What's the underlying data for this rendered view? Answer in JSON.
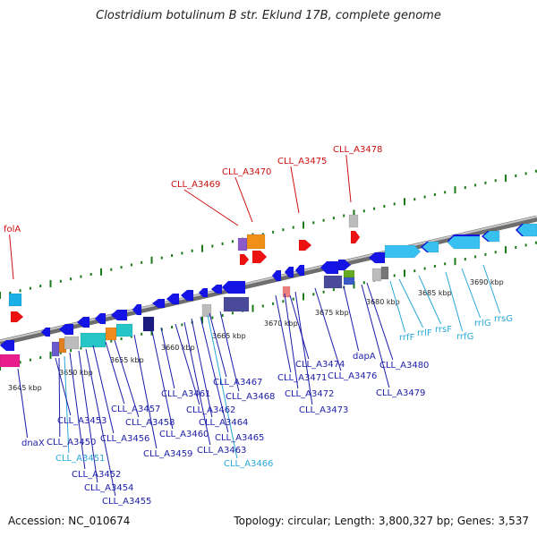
{
  "title": "Clostridium botulinum B str. Eklund 17B, complete genome",
  "accession": "Accession: NC_010674",
  "summary": "Topology: circular; Length: 3,800,327 bp; Genes: 3,537",
  "colors": {
    "backbone": "#8a8a8a",
    "tick": "#1a7a1a",
    "gene_label": "#1c1ca8",
    "rna_label": "#2aa8d8",
    "special_label": "#cc1111"
  },
  "scale_labels": [
    "3645 kbp",
    "3650 kbp",
    "3655 kbp",
    "3660 kbp",
    "3665 kbp",
    "3670 kbp",
    "3675 kbp",
    "3680 kbp",
    "3685 kbp",
    "3690 kbp"
  ],
  "labels": {
    "folA": "folA",
    "CLL_A3469": "CLL_A3469",
    "CLL_A3470": "CLL_A3470",
    "CLL_A3475": "CLL_A3475",
    "CLL_A3478": "CLL_A3478",
    "dnaX": "dnaX",
    "CLL_A3450": "CLL_A3450",
    "CLL_A3451": "CLL_A3451",
    "CLL_A3452": "CLL_A3452",
    "CLL_A3453": "CLL_A3453",
    "CLL_A3454": "CLL_A3454",
    "CLL_A3455": "CLL_A3455",
    "CLL_A3456": "CLL_A3456",
    "CLL_A3457": "CLL_A3457",
    "CLL_A3458": "CLL_A3458",
    "CLL_A3459": "CLL_A3459",
    "CLL_A3460": "CLL_A3460",
    "CLL_A3461": "CLL_A3461",
    "CLL_A3462": "CLL_A3462",
    "CLL_A3463": "CLL_A3463",
    "CLL_A3464": "CLL_A3464",
    "CLL_A3465": "CLL_A3465",
    "CLL_A3466": "CLL_A3466",
    "CLL_A3467": "CLL_A3467",
    "CLL_A3468": "CLL_A3468",
    "CLL_A3471": "CLL_A3471",
    "CLL_A3472": "CLL_A3472",
    "CLL_A3473": "CLL_A3473",
    "CLL_A3474": "CLL_A3474",
    "CLL_A3476": "CLL_A3476",
    "CLL_A3479": "CLL_A3479",
    "CLL_A3480": "CLL_A3480",
    "dapA": "dapA",
    "rrfF": "rrfF",
    "rrlF": "rrlF",
    "rrsF": "rrsF",
    "rrfG": "rrfG",
    "rrlG": "rrlG",
    "rrsG": "rrsG"
  }
}
